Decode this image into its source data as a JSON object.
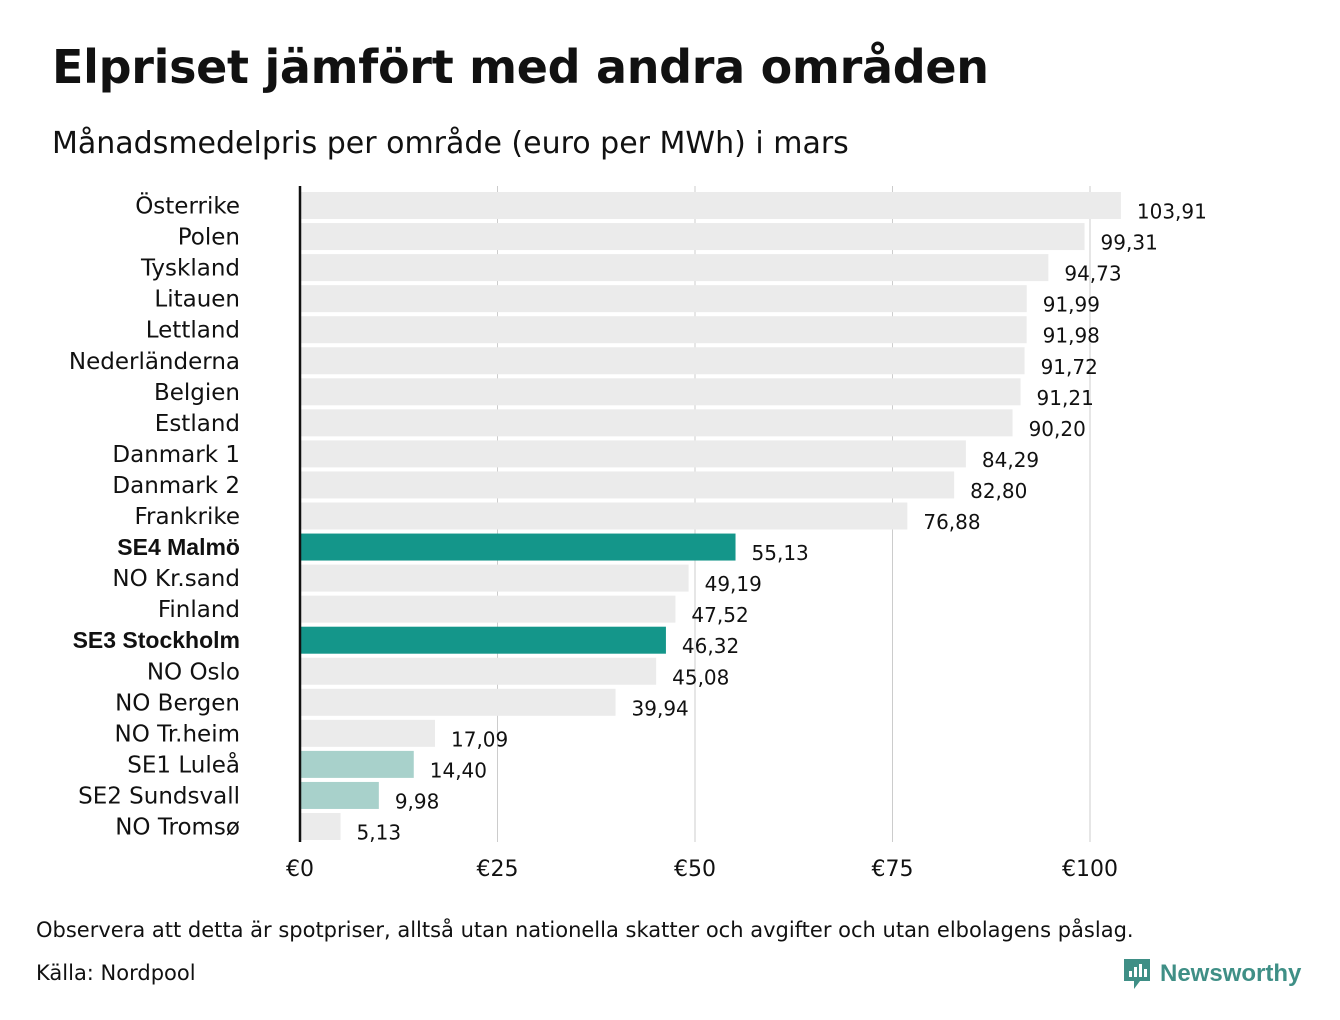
{
  "title": "Elpriset jämfört med andra områden",
  "subtitle": "Månadsmedelpris per område (euro per MWh) i mars",
  "footnote": "Observera att detta är spotpriser, alltså utan nationella skatter och avgifter och utan elbolagens påslag.",
  "source": "Källa: Nordpool",
  "brand": {
    "name": "Newsworthy",
    "icon": "newsworthy-logo-icon",
    "color": "#3f8f86"
  },
  "colors": {
    "default_bar": "#ebebeb",
    "highlight_bar": "#14968a",
    "light_highlight_bar": "#a8d1cb",
    "grid": "#cccccc",
    "axis": "#111111"
  },
  "chart_data": {
    "type": "bar",
    "orientation": "horizontal",
    "title": "Elpriset jämfört med andra områden",
    "subtitle": "Månadsmedelpris per område (euro per MWh) i mars",
    "xlim": [
      0,
      110
    ],
    "xticks": [
      0,
      25,
      50,
      75,
      100
    ],
    "xtick_labels": [
      "€0",
      "€25",
      "€50",
      "€75",
      "€100"
    ],
    "grid": "vertical",
    "categories": [
      "Österrike",
      "Polen",
      "Tyskland",
      "Litauen",
      "Lettland",
      "Nederländerna",
      "Belgien",
      "Estland",
      "Danmark 1",
      "Danmark 2",
      "Frankrike",
      "SE4 Malmö",
      "NO Kr.sand",
      "Finland",
      "SE3 Stockholm",
      "NO Oslo",
      "NO Bergen",
      "NO Tr.heim",
      "SE1 Luleå",
      "SE2 Sundsvall",
      "NO Tromsø"
    ],
    "values": [
      103.91,
      99.31,
      94.73,
      91.99,
      91.98,
      91.72,
      91.21,
      90.2,
      84.29,
      82.8,
      76.88,
      55.13,
      49.19,
      47.52,
      46.32,
      45.08,
      39.94,
      17.09,
      14.4,
      9.98,
      5.13
    ],
    "value_labels": [
      "103,91",
      "99,31",
      "94,73",
      "91,99",
      "91,98",
      "91,72",
      "91,21",
      "90,20",
      "84,29",
      "82,80",
      "76,88",
      "55,13",
      "49,19",
      "47,52",
      "46,32",
      "45,08",
      "39,94",
      "17,09",
      "14,40",
      "9,98",
      "5,13"
    ],
    "highlight": [
      "none",
      "none",
      "none",
      "none",
      "none",
      "none",
      "none",
      "none",
      "none",
      "none",
      "none",
      "strong",
      "none",
      "none",
      "strong",
      "none",
      "none",
      "none",
      "light",
      "light",
      "none"
    ]
  }
}
